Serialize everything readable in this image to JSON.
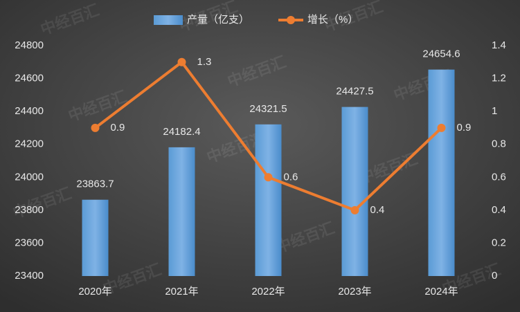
{
  "chart_data": {
    "type": "bar",
    "watermark": "中经百汇",
    "categories": [
      "2020年",
      "2021年",
      "2022年",
      "2023年",
      "2024年"
    ],
    "series": [
      {
        "name": "产量（亿支）",
        "color": "#5b9bd5",
        "values": [
          23863.7,
          24182.4,
          24321.5,
          24427.5,
          24654.6
        ]
      },
      {
        "name": "增长（%）",
        "color": "#ed7d31",
        "type": "line",
        "axis": "y2",
        "values": [
          0.9,
          1.3,
          0.6,
          0.4,
          0.9
        ]
      }
    ],
    "ylim": [
      23400,
      24800
    ],
    "yticks": [
      23400,
      23600,
      23800,
      24000,
      24200,
      24400,
      24600,
      24800
    ],
    "y2lim": [
      0,
      1.4
    ],
    "y2ticks": [
      0,
      0.2,
      0.4,
      0.6,
      0.8,
      1,
      1.2,
      1.4
    ],
    "grid": false,
    "legend": "top"
  }
}
